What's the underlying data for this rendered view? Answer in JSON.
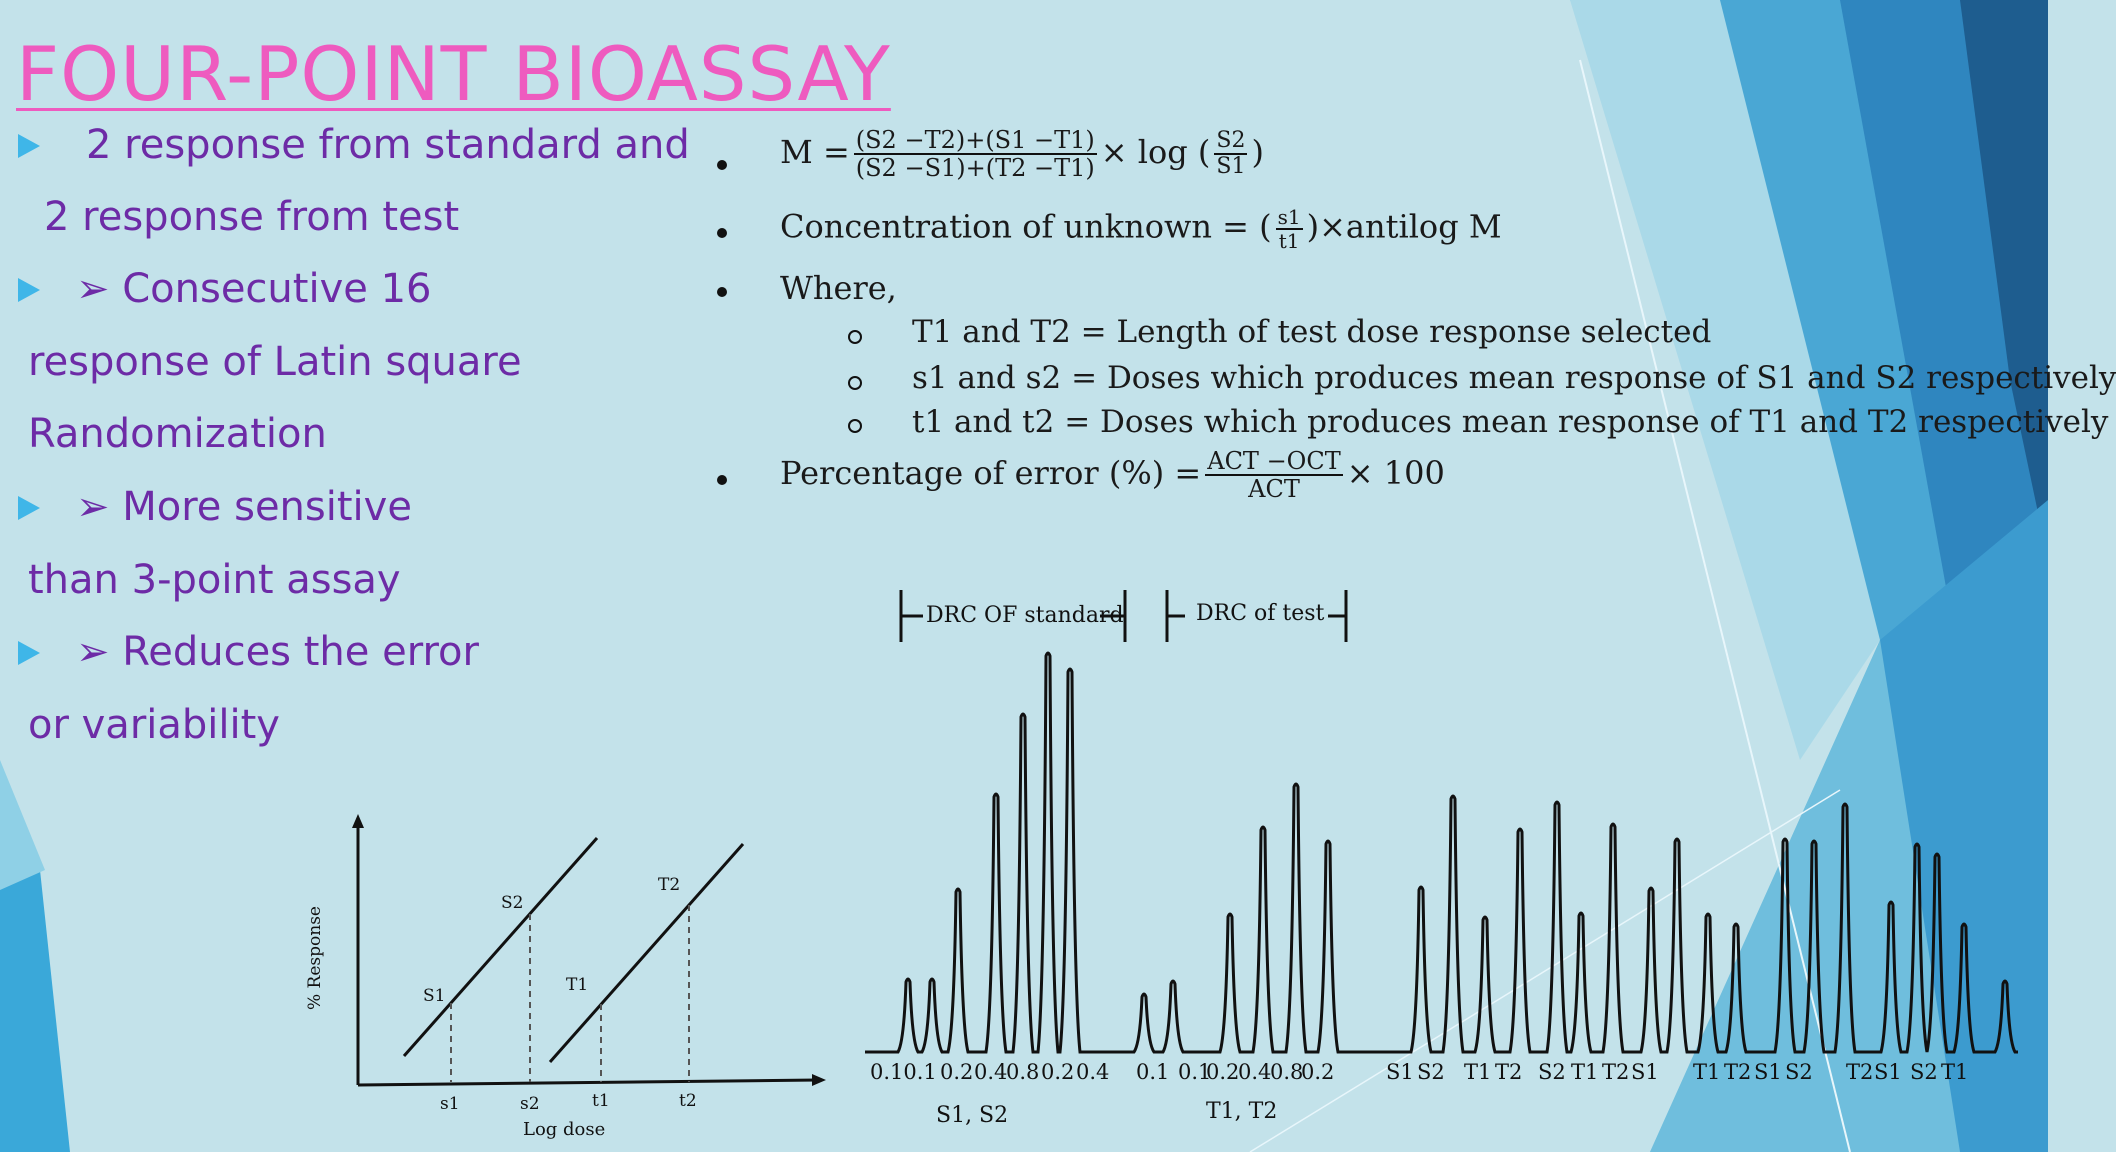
{
  "title": "FOUR-POINT BIOASSAY",
  "colors": {
    "title": "#ee5bbf",
    "bullet_text": "#6d2ba6",
    "bullet_marker": "#3fb6e8",
    "background": "#c3e2ea"
  },
  "bullets": [
    {
      "line1": "2 response from standard and",
      "line2": "2 response from test"
    },
    {
      "line1": "➢ Consecutive 16",
      "line2": "response of Latin square",
      "line3": "Randomization"
    },
    {
      "line1": "➢ More sensitive",
      "line2": "than 3-point assay"
    },
    {
      "line1": "➢ Reduces the error",
      "line2": "or variability"
    }
  ],
  "formulas": {
    "m_lhs": "M =",
    "m_num": "(S2 −T2)+(S1 −T1)",
    "m_den": "(S2 −S1)+(T2 −T1)",
    "m_times_log": "× log",
    "m_ratio_num": "S2",
    "m_ratio_den": "S1",
    "conc_label": "Concentration of unknown =",
    "conc_num": "s1",
    "conc_den": "t1",
    "conc_tail": "×antilog M",
    "where": "Where,",
    "where_items": [
      "T1 and T2 = Length of test dose response selected",
      "s1 and s2 = Doses which produces mean response of S1 and S2 respectively",
      "t1 and t2 = Doses which produces mean response of T1 and T2 respectively"
    ],
    "error_label": "Percentage of error (%) =",
    "error_num": "ACT −OCT",
    "error_den": "ACT",
    "error_tail": "× 100"
  },
  "dose_graph": {
    "ylabel": "% Response",
    "xlabel": "Log dose",
    "line_labels": [
      "S1",
      "S2",
      "T1",
      "T2"
    ],
    "x_ticks": [
      "s1",
      "s2",
      "t1",
      "t2"
    ]
  },
  "trace": {
    "header_standard": "DRC OF standard",
    "header_test": "DRC of test",
    "x_labels": [
      "0.10.1",
      "0.2",
      "0.4",
      "0.8",
      "0.2",
      "0.4",
      "0.1",
      "0.1",
      "0.2",
      "0.4",
      "0.8",
      "0.2",
      "S1",
      "S2",
      "T1",
      "T2",
      "S2",
      "T1",
      "T2",
      "S1",
      "T1",
      "T2",
      "S1",
      "S2",
      "T2",
      "S1",
      "S2",
      "T1"
    ],
    "group_labels": [
      "S1, S2",
      "T1, T2"
    ]
  }
}
